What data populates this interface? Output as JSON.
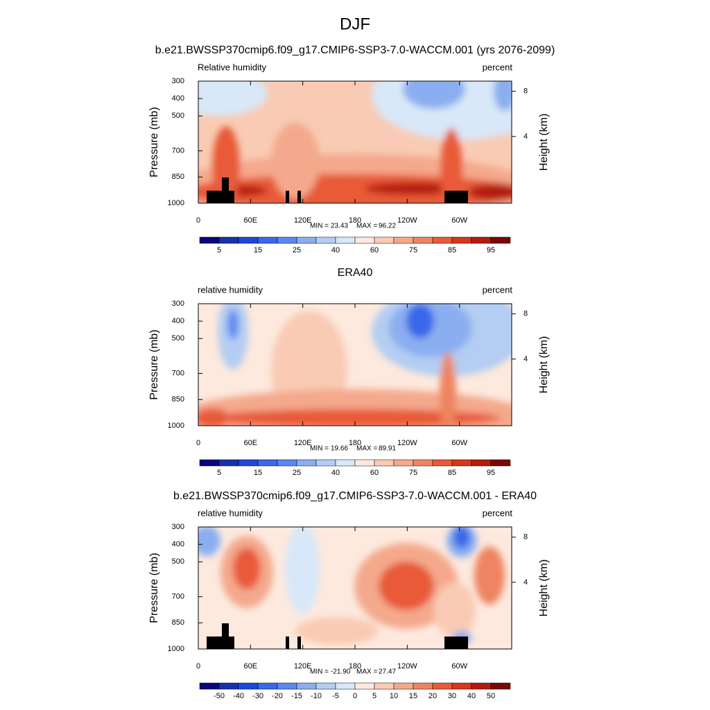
{
  "title": "DJF",
  "chart_data": [
    {
      "type": "contour",
      "title": "b.e21.BWSSP370cmip6.f09_g17.CMIP6-SSP3-7.0-WACCM.001 (yrs 2076-2099)",
      "left_label": "Relative humidity",
      "right_label": "percent",
      "ylabel": "Pressure (mb)",
      "y2label": "Height (km)",
      "xlim": [
        0,
        360
      ],
      "xticks": [
        0,
        {
          "value": 60,
          "label": "60E"
        },
        {
          "value": 120,
          "label": "120E"
        },
        180,
        {
          "value": 240,
          "label": "120W"
        },
        {
          "value": 300,
          "label": "60W"
        }
      ],
      "ylim": [
        1000,
        300
      ],
      "yticks": [
        300,
        400,
        500,
        700,
        850,
        1000
      ],
      "y2lim": [
        -1.9,
        8.9
      ],
      "y2ticks": [
        4,
        8
      ],
      "min_label": "MIN =",
      "min": 23.43,
      "max_label": "MAX =",
      "max": 96.22,
      "colorbar": {
        "colors": [
          "#08087a",
          "#1530b0",
          "#2048d8",
          "#3a68e8",
          "#5a88f0",
          "#8aaef0",
          "#b4cdf2",
          "#d8e8f8",
          "#fde9de",
          "#f9cbb4",
          "#f4a98c",
          "#ee8460",
          "#e85a38",
          "#d8361a",
          "#b41c0e",
          "#7a0606"
        ],
        "labels": [
          5,
          null,
          15,
          null,
          25,
          null,
          40,
          null,
          60,
          null,
          75,
          null,
          85,
          null,
          95
        ]
      }
    },
    {
      "type": "contour",
      "title": "ERA40",
      "left_label": "relative humidity",
      "right_label": "percent",
      "ylabel": "Pressure (mb)",
      "y2label": "Height (km)",
      "xlim": [
        0,
        360
      ],
      "xticks": [
        0,
        {
          "value": 60,
          "label": "60E"
        },
        {
          "value": 120,
          "label": "120E"
        },
        180,
        {
          "value": 240,
          "label": "120W"
        },
        {
          "value": 300,
          "label": "60W"
        }
      ],
      "ylim": [
        1000,
        300
      ],
      "yticks": [
        300,
        400,
        500,
        700,
        850,
        1000
      ],
      "y2lim": [
        -1.9,
        8.9
      ],
      "y2ticks": [
        4,
        8
      ],
      "min_label": "MIN =",
      "min": 19.66,
      "max_label": "MAX =",
      "max": 89.91,
      "colorbar": {
        "colors": [
          "#08087a",
          "#1530b0",
          "#2048d8",
          "#3a68e8",
          "#5a88f0",
          "#8aaef0",
          "#b4cdf2",
          "#d8e8f8",
          "#fde9de",
          "#f9cbb4",
          "#f4a98c",
          "#ee8460",
          "#e85a38",
          "#d8361a",
          "#b41c0e",
          "#7a0606"
        ],
        "labels": [
          5,
          null,
          15,
          null,
          25,
          null,
          40,
          null,
          60,
          null,
          75,
          null,
          85,
          null,
          95
        ]
      }
    },
    {
      "type": "contour",
      "title": "b.e21.BWSSP370cmip6.f09_g17.CMIP6-SSP3-7.0-WACCM.001 - ERA40",
      "left_label": "relative humidity",
      "right_label": "percent",
      "ylabel": "Pressure (mb)",
      "y2label": "Height (km)",
      "xlim": [
        0,
        360
      ],
      "xticks": [
        0,
        {
          "value": 60,
          "label": "60E"
        },
        {
          "value": 120,
          "label": "120E"
        },
        180,
        {
          "value": 240,
          "label": "120W"
        },
        {
          "value": 300,
          "label": "60W"
        }
      ],
      "ylim": [
        1000,
        300
      ],
      "yticks": [
        300,
        400,
        500,
        700,
        850,
        1000
      ],
      "y2lim": [
        -1.9,
        8.9
      ],
      "y2ticks": [
        4,
        8
      ],
      "min_label": "MIN =",
      "min": {
        "value": -21.9,
        "label": "-21.90"
      },
      "max_label": "MAX =",
      "max": 27.47,
      "colorbar": {
        "colors": [
          "#08087a",
          "#1530b0",
          "#2048d8",
          "#3a68e8",
          "#5a88f0",
          "#8aaef0",
          "#b4cdf2",
          "#d8e8f8",
          "#fde9de",
          "#f9cbb4",
          "#f4a98c",
          "#ee8460",
          "#e85a38",
          "#d8361a",
          "#b41c0e",
          "#7a0606"
        ],
        "labels": [
          -50,
          -40,
          -30,
          -20,
          -15,
          -10,
          -5,
          0,
          5,
          10,
          15,
          20,
          30,
          40,
          50
        ]
      }
    }
  ]
}
